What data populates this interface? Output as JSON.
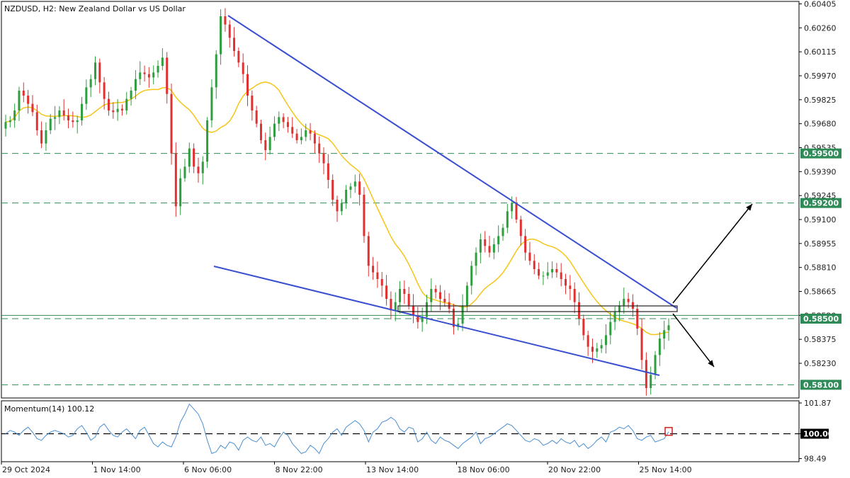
{
  "chart_data": {
    "type": "candlestick",
    "title": "NZDUSD, H2:  New Zealand Dollar vs US Dollar",
    "price_axis": {
      "ylim": [
        0.5802,
        0.6042
      ],
      "ticks": [
        "0.60405",
        "0.60260",
        "0.60115",
        "0.59970",
        "0.59825",
        "0.59680",
        "0.59535",
        "0.59390",
        "0.59245",
        "0.59100",
        "0.58955",
        "0.58810",
        "0.58665",
        "0.58520",
        "0.58375",
        "0.58230"
      ]
    },
    "time_axis": {
      "ticks": [
        "29 Oct 2024",
        "1 Nov 14:00",
        "6 Nov 06:00",
        "8 Nov 22:00",
        "13 Nov 14:00",
        "18 Nov 06:00",
        "20 Nov 22:00",
        "25 Nov 14:00"
      ]
    },
    "levels": [
      {
        "price": 0.595,
        "label": "0.59500",
        "style": "dashed",
        "color": "#2e8b57"
      },
      {
        "price": 0.592,
        "label": "0.59200",
        "style": "dashed",
        "color": "#2e8b57"
      },
      {
        "price": 0.585,
        "label": "0.58500",
        "style": "dashed",
        "color": "#2e8b57"
      },
      {
        "price": 0.581,
        "label": "0.58100",
        "style": "dashed",
        "color": "#2e8b57"
      },
      {
        "price": 0.5852,
        "label": "",
        "style": "solid",
        "color": "#2e8b57"
      }
    ],
    "candle_colors": {
      "up": "#2e9e3e",
      "down": "#e03030"
    },
    "moving_average_color": "#f5c518",
    "trendline_color": "#3a4fd0",
    "momentum": {
      "title": "Momentum(14) 100.12",
      "ylim": [
        98.3,
        102.0
      ],
      "ticks": [
        "101.87",
        "100.00",
        "98.49"
      ],
      "reference": 100.0,
      "color": "#4a8fd0"
    },
    "price_series": [
      0.5969,
      0.597,
      0.5976,
      0.5988,
      0.5985,
      0.598,
      0.5975,
      0.5964,
      0.5956,
      0.5964,
      0.5971,
      0.5972,
      0.5976,
      0.5973,
      0.597,
      0.5969,
      0.597,
      0.598,
      0.599,
      0.5995,
      0.6005,
      0.5993,
      0.5983,
      0.5976,
      0.5975,
      0.5977,
      0.5976,
      0.5983,
      0.5988,
      0.5995,
      0.5999,
      0.5998,
      0.5996,
      0.5999,
      0.6003,
      0.6008,
      0.5986,
      0.595,
      0.5918,
      0.5935,
      0.5942,
      0.5953,
      0.5942,
      0.5938,
      0.5945,
      0.597,
      0.599,
      0.601,
      0.6033,
      0.6028,
      0.602,
      0.6012,
      0.6005,
      0.5998,
      0.5985,
      0.5976,
      0.5968,
      0.5958,
      0.5952,
      0.596,
      0.5968,
      0.5972,
      0.5969,
      0.5966,
      0.5962,
      0.5958,
      0.596,
      0.5964,
      0.5962,
      0.5956,
      0.595,
      0.5944,
      0.5934,
      0.5922,
      0.5915,
      0.592,
      0.5928,
      0.593,
      0.5933,
      0.5925,
      0.59,
      0.5882,
      0.5878,
      0.5874,
      0.587,
      0.5862,
      0.5855,
      0.586,
      0.5868,
      0.5865,
      0.5858,
      0.5852,
      0.5848,
      0.5851,
      0.586,
      0.5868,
      0.5866,
      0.5862,
      0.586,
      0.5856,
      0.5845,
      0.5847,
      0.5858,
      0.587,
      0.5882,
      0.589,
      0.5898,
      0.5894,
      0.589,
      0.5895,
      0.59,
      0.5905,
      0.5915,
      0.592,
      0.591,
      0.59,
      0.589,
      0.5885,
      0.588,
      0.5876,
      0.5876,
      0.5878,
      0.588,
      0.5878,
      0.5874,
      0.587,
      0.5868,
      0.586,
      0.585,
      0.584,
      0.5833,
      0.583,
      0.5832,
      0.5834,
      0.584,
      0.5848,
      0.5854,
      0.5858,
      0.5862,
      0.586,
      0.5856,
      0.5844,
      0.5825,
      0.5808,
      0.5816,
      0.5828,
      0.5838,
      0.5843,
      0.5846
    ],
    "momentum_series": [
      100.0,
      100.2,
      100.1,
      99.9,
      100.2,
      100.4,
      100.1,
      99.7,
      99.6,
      99.9,
      100.1,
      100.2,
      100.1,
      100.0,
      99.8,
      99.9,
      100.3,
      100.5,
      100.1,
      99.6,
      99.8,
      100.4,
      100.6,
      100.2,
      99.9,
      99.8,
      100.1,
      100.3,
      100.0,
      99.7,
      100.2,
      100.4,
      99.9,
      99.4,
      99.2,
      99.5,
      99.3,
      99.2,
      99.8,
      100.7,
      101.2,
      101.8,
      101.5,
      101.2,
      100.6,
      99.6,
      98.8,
      98.9,
      99.3,
      99.1,
      99.5,
      99.4,
      99.0,
      99.6,
      99.8,
      99.6,
      99.5,
      99.8,
      99.3,
      99.4,
      99.2,
      99.7,
      100.1,
      99.9,
      99.4,
      99.1,
      98.8,
      98.9,
      99.3,
      99.1,
      98.8,
      99.4,
      99.7,
      100.1,
      100.3,
      99.9,
      100.4,
      100.6,
      100.8,
      100.6,
      100.2,
      99.5,
      100.1,
      100.3,
      100.7,
      100.8,
      101.0,
      100.8,
      100.3,
      100.1,
      100.4,
      100.3,
      99.5,
      99.7,
      100.1,
      99.6,
      99.4,
      99.8,
      99.6,
      99.5,
      99.3,
      99.1,
      99.4,
      99.6,
      99.8,
      100.1,
      99.4,
      99.7,
      99.8,
      100.0,
      100.2,
      100.4,
      100.6,
      100.5,
      100.2,
      99.9,
      99.6,
      99.5,
      99.7,
      99.6,
      99.3,
      99.4,
      99.6,
      99.4,
      99.7,
      99.5,
      99.4,
      99.6,
      99.2,
      99.4,
      99.1,
      99.3,
      99.6,
      99.8,
      99.5,
      100.1,
      100.2,
      100.4,
      100.3,
      100.5,
      100.2,
      99.7,
      99.6,
      99.8,
      99.9,
      99.5,
      99.6,
      99.7,
      100.12
    ]
  }
}
